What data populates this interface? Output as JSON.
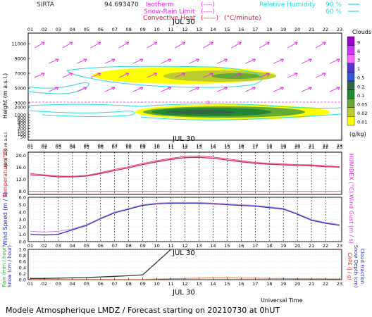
{
  "header": {
    "site": "SIRTA",
    "coord": "94.693470",
    "legend": [
      {
        "label": "Isotherm",
        "sym": "(----)",
        "color": "#ee22ee"
      },
      {
        "label": "Snow-Rain Limit",
        "sym": "(----)",
        "color": "#ee22ee"
      },
      {
        "label": "Convective Heat",
        "sym": "(——)",
        "extra": "(°C/minute)",
        "color": "#ee1133"
      }
    ],
    "rh_label": "Relative Humidity",
    "rh_values": [
      "90 %",
      "60 %"
    ],
    "rh_color": "#22dddd"
  },
  "footer": {
    "universal_time": "Universal Time",
    "title": "Modele Atmospherique LMDZ / Forecast starting on 20210730 at 0hUT"
  },
  "colorbar": {
    "title": "Clouds",
    "unit": "(g/kg)",
    "ticks": [
      "9",
      "6",
      "3",
      "1",
      "0.5",
      "0.2",
      "0.1",
      "0.05",
      "0.02",
      "0.01"
    ],
    "colors": [
      "#9900cc",
      "#cc33ff",
      "#ff66ff",
      "#5533cc",
      "#3355dd",
      "#336644",
      "#228833",
      "#66aa33",
      "#bbcc33",
      "#ffff00"
    ]
  },
  "chart_data": [
    {
      "type": "heatmap",
      "title": "JUL 30",
      "ylabel": "Height (m a.s.l.)",
      "hours": [
        "01",
        "02",
        "03",
        "04",
        "05",
        "06",
        "07",
        "08",
        "09",
        "10",
        "11",
        "12",
        "13",
        "14",
        "15",
        "16",
        "17",
        "18",
        "19",
        "20",
        "21",
        "22",
        "23"
      ],
      "yticks": [
        "11000",
        "9000",
        "7000",
        "5000",
        "3000",
        "2000",
        "1000",
        "800",
        "600",
        "400",
        "300",
        "200",
        "150",
        "100",
        "50"
      ],
      "isotherm_label": "0",
      "cloud_layers": [
        {
          "name": "mid cloud",
          "height_m": [
            6300,
            7800
          ],
          "hours": [
            "06",
            "18"
          ],
          "max_gkg": 0.2
        },
        {
          "name": "low cloud",
          "height_m": [
            1000,
            2100
          ],
          "hours": [
            "09",
            "22"
          ],
          "max_gkg": 0.5
        }
      ]
    },
    {
      "type": "line",
      "title": "JUL 30",
      "ylabel": "Temperature (°C)",
      "ylabel_right": "HUMIDEX (°C)",
      "side_label": "Up to 200 m a.s.l.",
      "yticks": [
        "20.0",
        "16.0",
        "12.0",
        "8.0"
      ],
      "ylim": [
        7,
        21
      ],
      "x": [
        "01",
        "02",
        "03",
        "04",
        "05",
        "06",
        "07",
        "08",
        "09",
        "10",
        "11",
        "12",
        "13",
        "14",
        "15",
        "16",
        "17",
        "18",
        "19",
        "20",
        "21",
        "22",
        "23"
      ],
      "series": [
        {
          "color": "#cc2255",
          "values": [
            13.5,
            13.2,
            12.8,
            12.8,
            13.1,
            13.9,
            14.9,
            15.8,
            16.9,
            17.8,
            18.6,
            19.2,
            19.3,
            19.0,
            18.4,
            17.8,
            17.3,
            17.0,
            16.8,
            16.6,
            16.5,
            16.2,
            16.0
          ]
        },
        {
          "color": "#ee4488",
          "values": [
            13.9,
            13.5,
            13.1,
            13.0,
            13.3,
            14.2,
            15.3,
            16.2,
            17.3,
            18.2,
            19.0,
            19.6,
            19.7,
            19.4,
            18.8,
            18.2,
            17.6,
            17.3,
            17.1,
            16.9,
            16.8,
            16.5,
            16.2
          ]
        }
      ],
      "reference_line": {
        "color": "#dd2222",
        "value": 8.0
      }
    },
    {
      "type": "line",
      "title": "JUL 30",
      "ylabel": "Wind Speed (m / s)",
      "ylabel_right": "Wind Gust (m / s)",
      "yticks": [
        "6.0",
        "5.0",
        "4.0",
        "3.0",
        "2.0",
        "1.0",
        "0.0"
      ],
      "ylim": [
        0,
        6
      ],
      "x": [
        "01",
        "02",
        "03",
        "04",
        "05",
        "06",
        "07",
        "08",
        "09",
        "10",
        "11",
        "12",
        "13",
        "14",
        "15",
        "16",
        "17",
        "18",
        "19",
        "20",
        "21",
        "22",
        "23"
      ],
      "series": [
        {
          "color": "#2222cc",
          "values": [
            1.0,
            0.9,
            1.0,
            1.6,
            2.2,
            3.1,
            3.9,
            4.4,
            4.9,
            5.1,
            5.2,
            5.2,
            5.2,
            5.1,
            5.0,
            4.9,
            4.8,
            4.6,
            4.4,
            3.7,
            2.9,
            2.5,
            2.2
          ]
        },
        {
          "color": "#cc88cc",
          "values": [
            1.4,
            1.3,
            1.4,
            1.7,
            2.3,
            3.2,
            4.0,
            4.5,
            5.0,
            5.2,
            5.3,
            5.3,
            5.3,
            5.2,
            5.1,
            5.0,
            4.9,
            4.7,
            4.5,
            3.8,
            3.0,
            2.6,
            2.3
          ]
        }
      ]
    },
    {
      "type": "line",
      "title": "JUL 30",
      "xlabel": "Universal Time",
      "ylabel": "Rain (mm / hour)",
      "ylabel2": "Snow (cm / hour)",
      "ylabel_right": "CAPE (J / g)",
      "ylabel_right2": "Snow Depth (cm)",
      "ylabel_right3": "Cloud Fraction",
      "yticks": [
        "1.0",
        "0.8",
        "0.6",
        "0.4",
        "0.2",
        "0.0"
      ],
      "ylim": [
        0,
        1
      ],
      "x": [
        "01",
        "02",
        "03",
        "04",
        "05",
        "06",
        "07",
        "08",
        "09",
        "10",
        "11",
        "12",
        "13",
        "14",
        "15",
        "16",
        "17",
        "18",
        "19",
        "20",
        "21",
        "22",
        "23"
      ],
      "series": [
        {
          "color": "#333333",
          "values": [
            0.04,
            0.04,
            0.05,
            0.06,
            0.07,
            0.09,
            0.11,
            0.13,
            0.16,
            0.58,
            1.0,
            1.0,
            1.0,
            1.0,
            1.0,
            1.0,
            1.0,
            1.0,
            1.0,
            1.0,
            1.0,
            1.0,
            1.0
          ]
        },
        {
          "color": "#dd7744",
          "values": [
            0.01,
            0.01,
            0.01,
            0.01,
            0.01,
            0.01,
            0.01,
            0.01,
            0.01,
            0.02,
            0.03,
            0.04,
            0.05,
            0.06,
            0.06,
            0.05,
            0.05,
            0.04,
            0.04,
            0.03,
            0.03,
            0.03,
            0.02
          ]
        }
      ]
    }
  ]
}
